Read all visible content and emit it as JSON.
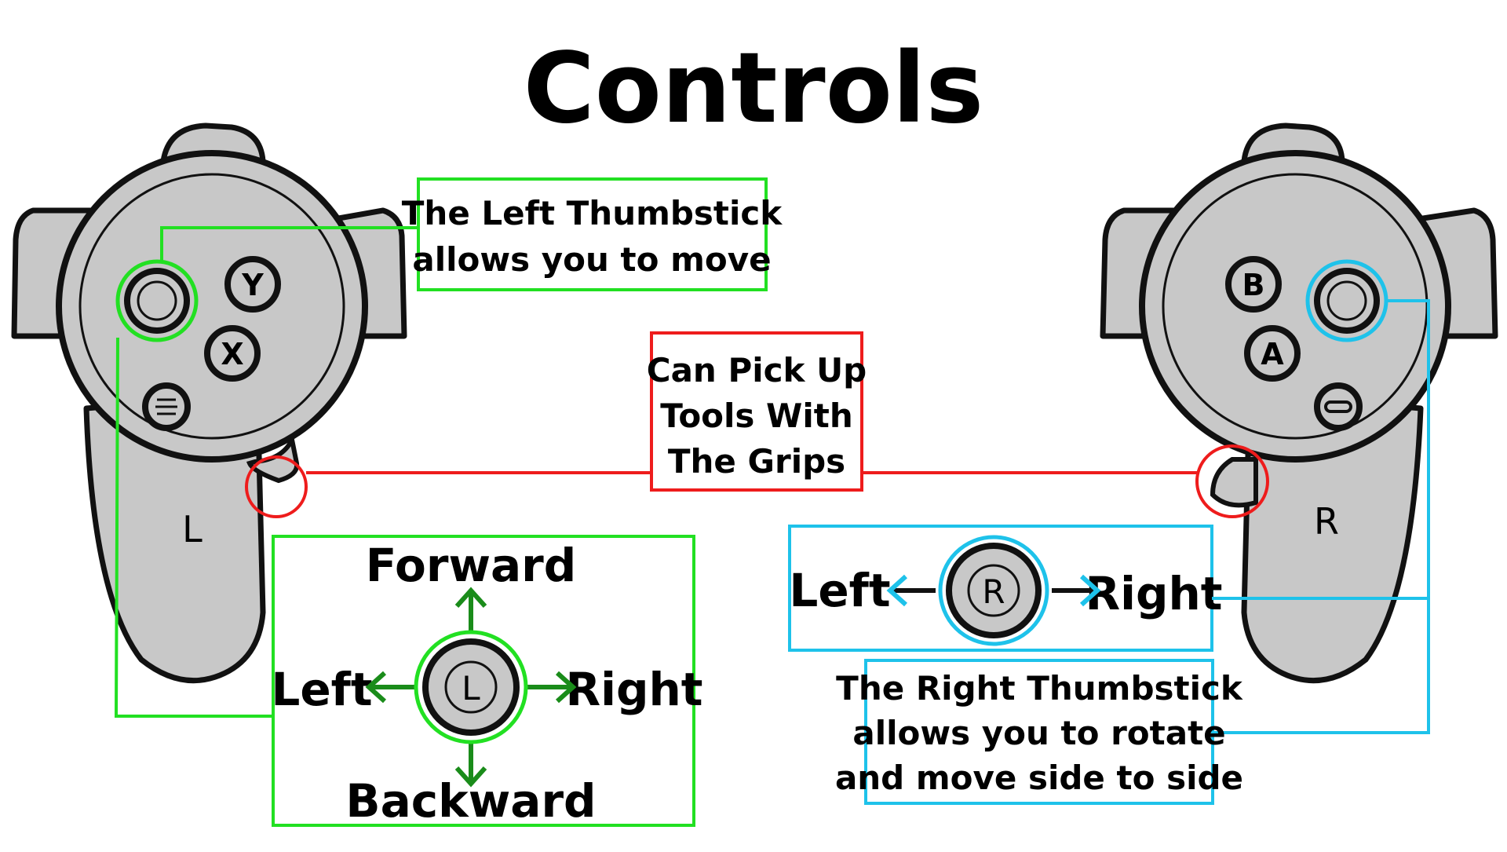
{
  "title": "Controls",
  "colors": {
    "left_accent": "#22e022",
    "right_accent": "#1ec2ea",
    "grip_accent": "#ee1c1c",
    "controller_fill": "#c8c8c8",
    "outline": "#111111"
  },
  "left_controller": {
    "side_label": "L",
    "buttons": [
      "Y",
      "X"
    ],
    "thumbstick_label": "L",
    "menu_icon": "menu-icon"
  },
  "right_controller": {
    "side_label": "R",
    "buttons": [
      "B",
      "A"
    ],
    "thumbstick_label": "R",
    "system_icon": "oculus-icon"
  },
  "callouts": {
    "left_thumbstick": [
      "The Left Thumbstick",
      "allows you to move"
    ],
    "grips": [
      "Can Pick Up",
      "Tools With",
      "The Grips"
    ],
    "right_thumbstick": [
      "The Right Thumbstick",
      "allows you to rotate",
      "and move side to side"
    ]
  },
  "left_directions": {
    "forward": "Forward",
    "backward": "Backward",
    "left": "Left",
    "right": "Right"
  },
  "right_directions": {
    "left": "Left",
    "right": "Right"
  }
}
